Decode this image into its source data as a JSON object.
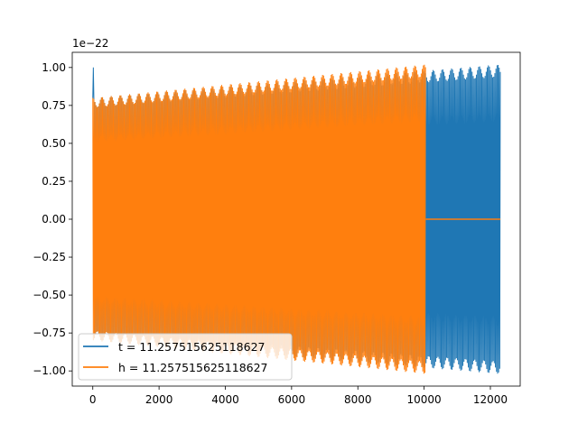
{
  "chart_data": {
    "type": "line",
    "title": "",
    "xlabel": "",
    "ylabel": "",
    "offset_text": "1e−22",
    "xlim": [
      -620,
      12900
    ],
    "ylim": [
      -1.1,
      1.1
    ],
    "xticks": [
      0,
      2000,
      4000,
      6000,
      8000,
      10000,
      12000
    ],
    "xtick_labels": [
      "0",
      "2000",
      "4000",
      "6000",
      "8000",
      "10000",
      "12000"
    ],
    "yticks": [
      -1.0,
      -0.75,
      -0.5,
      -0.25,
      0.0,
      0.25,
      0.5,
      0.75,
      1.0
    ],
    "ytick_labels": [
      "−1.00",
      "−0.75",
      "−0.50",
      "−0.25",
      "0.00",
      "0.25",
      "0.50",
      "0.75",
      "1.00"
    ],
    "grid": false,
    "legend_location": "lower-left",
    "series": [
      {
        "name": "t = 11.257515625118627",
        "color": "#1f77b4",
        "signal": "chirp",
        "x_start": 0,
        "x_end": 12300,
        "amplitude_start": 0.8,
        "amplitude_end": 1.02,
        "initial_spike": 1.0
      },
      {
        "name": "h = 11.257515625118627",
        "color": "#ff7f0e",
        "signal": "chirp",
        "x_start": 0,
        "x_end": 10050,
        "amplitude_start": 0.8,
        "amplitude_end": 1.02,
        "zero_after": 10050,
        "zero_until": 12300
      }
    ]
  }
}
